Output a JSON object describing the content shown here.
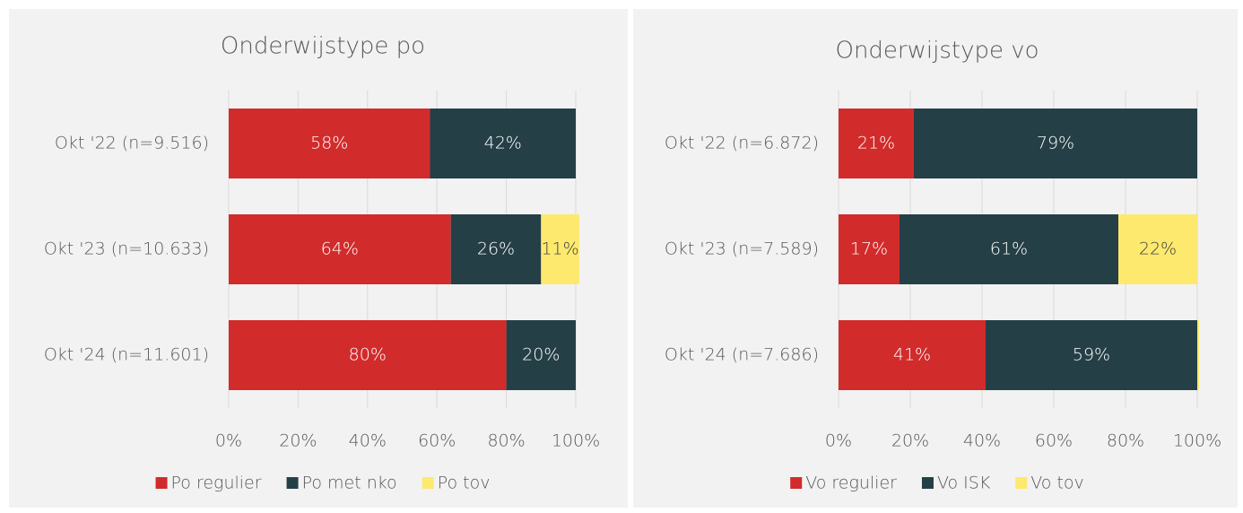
{
  "chart_data": [
    {
      "type": "bar",
      "orientation": "horizontal",
      "stacked": true,
      "title": "Onderwijstype po",
      "categories": [
        "Okt '22 (n=9.516)",
        "Okt '23 (n=10.633)",
        "Okt '24 (n=11.601)"
      ],
      "series": [
        {
          "name": "Po regulier",
          "color": "#d22b2b",
          "label_color": "#ffffff",
          "values": [
            58,
            64,
            80
          ],
          "value_labels": [
            "58%",
            "64%",
            "80%"
          ]
        },
        {
          "name": "Po met nko",
          "color": "#253f47",
          "label_color": "#ffffff",
          "values": [
            42,
            26,
            20
          ],
          "value_labels": [
            "42%",
            "26%",
            "20%"
          ]
        },
        {
          "name": "Po tov",
          "color": "#fde96e",
          "label_color": "#404040",
          "values": [
            null,
            11,
            null
          ],
          "value_labels": [
            null,
            "11%",
            null
          ]
        }
      ],
      "xlim": [
        0,
        100
      ],
      "xticks": [
        {
          "value": 0,
          "label": "0%"
        },
        {
          "value": 20,
          "label": "20%"
        },
        {
          "value": 40,
          "label": "40%"
        },
        {
          "value": 60,
          "label": "60%"
        },
        {
          "value": 80,
          "label": "80%"
        },
        {
          "value": 100,
          "label": "100%"
        }
      ],
      "grid": true,
      "legend": "bottom"
    },
    {
      "type": "bar",
      "orientation": "horizontal",
      "stacked": true,
      "title": "Onderwijstype vo",
      "categories": [
        "Okt '22 (n=6.872)",
        "Okt '23 (n=7.589)",
        "Okt '24 (n=7.686)"
      ],
      "series": [
        {
          "name": "Vo regulier",
          "color": "#d22b2b",
          "label_color": "#ffffff",
          "values": [
            21,
            17,
            41
          ],
          "value_labels": [
            "21%",
            "17%",
            "41%"
          ]
        },
        {
          "name": "Vo ISK",
          "color": "#253f47",
          "label_color": "#ffffff",
          "values": [
            79,
            61,
            59
          ],
          "value_labels": [
            "79%",
            "61%",
            "59%"
          ]
        },
        {
          "name": "Vo tov",
          "color": "#fde96e",
          "label_color": "#404040",
          "values": [
            null,
            22,
            0.5
          ],
          "value_labels": [
            null,
            "22%",
            null
          ]
        }
      ],
      "xlim": [
        0,
        100
      ],
      "xticks": [
        {
          "value": 0,
          "label": "0%"
        },
        {
          "value": 20,
          "label": "20%"
        },
        {
          "value": 40,
          "label": "40%"
        },
        {
          "value": 60,
          "label": "60%"
        },
        {
          "value": 80,
          "label": "80%"
        },
        {
          "value": 100,
          "label": "100%"
        }
      ],
      "grid": true,
      "legend": "bottom"
    }
  ]
}
